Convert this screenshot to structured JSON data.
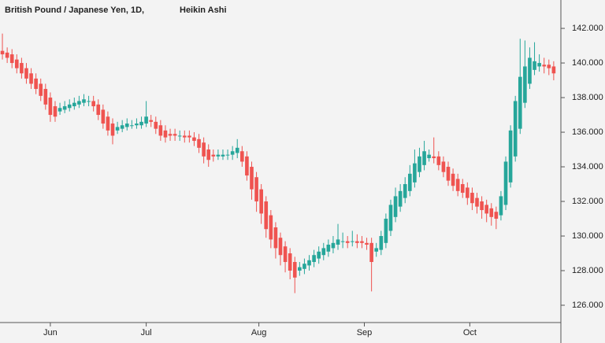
{
  "chart_data": {
    "type": "candlestick",
    "title": "British Pound / Japanese Yen, 1D,",
    "subtitle": "Heikin Ashi",
    "up_color": "#26a69a",
    "down_color": "#ef5350",
    "xlim": [
      -0.5,
      116.5
    ],
    "xticks": [
      {
        "value": 10,
        "label": "Jun"
      },
      {
        "value": 30,
        "label": "Jul"
      },
      {
        "value": 53.5,
        "label": "Aug"
      },
      {
        "value": 75.5,
        "label": "Sep"
      },
      {
        "value": 97.5,
        "label": "Oct"
      }
    ],
    "ylim": [
      125,
      143.64
    ],
    "yticks": [
      {
        "value": 126,
        "label": "126.000"
      },
      {
        "value": 128,
        "label": "128.000"
      },
      {
        "value": 130,
        "label": "130.000"
      },
      {
        "value": 132,
        "label": "132.000"
      },
      {
        "value": 134,
        "label": "134.000"
      },
      {
        "value": 136,
        "label": "136.000"
      },
      {
        "value": 138,
        "label": "138.000"
      },
      {
        "value": 140,
        "label": "140.000"
      },
      {
        "value": 142,
        "label": "142.000"
      }
    ],
    "open": [
      140.7,
      140.6,
      140.5,
      140.2,
      140.0,
      139.7,
      139.4,
      139.1,
      138.8,
      138.5,
      138.0,
      137.5,
      137.2,
      137.3,
      137.4,
      137.5,
      137.6,
      137.7,
      137.8,
      137.8,
      137.6,
      137.3,
      136.9,
      136.5,
      136.1,
      136.2,
      136.3,
      136.4,
      136.4,
      136.4,
      136.5,
      136.7,
      136.6,
      136.4,
      136.1,
      135.9,
      135.9,
      135.8,
      135.8,
      135.8,
      135.7,
      135.6,
      135.4,
      135.0,
      134.7,
      134.6,
      134.6,
      134.7,
      134.7,
      134.8,
      134.9,
      134.6,
      134.0,
      133.4,
      132.7,
      132.0,
      131.2,
      130.5,
      129.9,
      129.4,
      129.0,
      128.5,
      128.0,
      128.1,
      128.3,
      128.5,
      128.7,
      128.9,
      129.1,
      129.3,
      129.5,
      129.7,
      129.7,
      129.7,
      129.7,
      129.7,
      129.6,
      129.6,
      129.1,
      129.2,
      129.6,
      130.3,
      131.1,
      131.7,
      132.2,
      132.6,
      133.1,
      133.7,
      134.1,
      134.5,
      134.6,
      134.6,
      134.3,
      134.0,
      133.6,
      133.3,
      133.0,
      132.8,
      132.5,
      132.2,
      132.0,
      131.8,
      131.6,
      131.4,
      131.2,
      131.8,
      133.1,
      134.6,
      136.2,
      137.7,
      138.8,
      139.6,
      139.8,
      139.9,
      139.9,
      139.8
    ],
    "close": [
      140.5,
      140.3,
      140.0,
      139.7,
      139.4,
      139.1,
      138.8,
      138.5,
      138.1,
      137.6,
      137.0,
      136.9,
      137.4,
      137.5,
      137.6,
      137.7,
      137.8,
      137.9,
      137.8,
      137.5,
      137.0,
      136.5,
      136.1,
      135.8,
      136.3,
      136.4,
      136.5,
      136.4,
      136.5,
      136.6,
      136.9,
      136.6,
      136.2,
      135.8,
      135.7,
      135.8,
      135.8,
      135.8,
      135.7,
      135.7,
      135.5,
      135.1,
      134.6,
      134.4,
      134.6,
      134.7,
      134.7,
      134.7,
      134.9,
      135.1,
      134.3,
      133.5,
      132.7,
      132.0,
      131.3,
      130.4,
      129.8,
      129.3,
      128.9,
      128.5,
      128.0,
      127.6,
      128.2,
      128.4,
      128.6,
      128.9,
      129.1,
      129.3,
      129.5,
      129.6,
      129.8,
      129.7,
      129.6,
      129.7,
      129.6,
      129.6,
      129.5,
      128.5,
      129.3,
      130.0,
      131.0,
      131.8,
      132.3,
      132.6,
      133.0,
      133.6,
      134.2,
      134.6,
      134.9,
      134.7,
      134.5,
      134.1,
      133.7,
      133.2,
      132.9,
      132.6,
      132.5,
      132.2,
      131.9,
      131.7,
      131.5,
      131.3,
      131.1,
      131.0,
      132.3,
      134.3,
      136.1,
      137.8,
      139.2,
      139.8,
      140.3,
      140.1,
      140.0,
      139.8,
      139.7,
      139.4
    ],
    "high": [
      141.7,
      140.9,
      140.8,
      140.5,
      140.3,
      140.0,
      139.7,
      139.4,
      139.1,
      138.8,
      138.3,
      137.8,
      137.7,
      137.8,
      137.9,
      138.0,
      138.1,
      138.2,
      138.1,
      138.1,
      137.9,
      137.6,
      137.2,
      136.8,
      136.6,
      136.7,
      136.8,
      136.7,
      136.8,
      136.9,
      137.8,
      137.0,
      136.9,
      136.7,
      136.4,
      136.2,
      136.2,
      136.1,
      136.1,
      136.1,
      136.0,
      135.9,
      135.7,
      135.3,
      135.0,
      135.0,
      135.0,
      135.0,
      135.2,
      135.6,
      135.2,
      134.9,
      134.3,
      133.7,
      133.0,
      132.3,
      131.5,
      130.8,
      130.2,
      129.7,
      129.3,
      128.8,
      128.5,
      128.7,
      128.9,
      129.2,
      129.4,
      129.6,
      129.8,
      130.0,
      130.7,
      130.2,
      130.0,
      130.3,
      130.1,
      130.0,
      129.9,
      129.9,
      129.6,
      130.3,
      131.3,
      132.1,
      132.8,
      133.0,
      133.4,
      134.1,
      135.0,
      135.1,
      135.5,
      135.0,
      135.7,
      134.9,
      134.6,
      134.3,
      133.9,
      133.6,
      133.3,
      133.1,
      132.8,
      132.5,
      132.3,
      132.1,
      131.9,
      131.7,
      132.6,
      134.6,
      136.4,
      138.1,
      141.4,
      141.3,
      140.9,
      141.2,
      140.5,
      140.3,
      140.2,
      140.1
    ],
    "low": [
      140.2,
      140.0,
      139.7,
      139.4,
      139.1,
      138.8,
      138.5,
      138.2,
      137.8,
      137.3,
      136.6,
      136.6,
      137.0,
      137.1,
      137.2,
      137.3,
      137.4,
      137.5,
      137.5,
      137.2,
      136.7,
      136.2,
      135.8,
      135.3,
      135.9,
      136.0,
      136.1,
      136.2,
      136.2,
      136.2,
      136.3,
      136.3,
      135.9,
      135.5,
      135.4,
      135.5,
      135.5,
      135.5,
      135.4,
      135.4,
      135.2,
      134.8,
      134.2,
      134.0,
      134.3,
      134.4,
      134.4,
      134.4,
      134.4,
      134.5,
      134.0,
      133.2,
      132.1,
      131.4,
      130.7,
      129.9,
      129.3,
      128.7,
      128.3,
      127.9,
      127.5,
      126.7,
      127.7,
      127.8,
      128.0,
      128.2,
      128.4,
      128.6,
      128.8,
      129.0,
      129.2,
      129.3,
      129.3,
      129.4,
      129.3,
      129.3,
      129.2,
      126.8,
      128.8,
      128.9,
      129.3,
      130.0,
      130.8,
      131.4,
      131.9,
      132.3,
      132.8,
      133.4,
      133.8,
      134.3,
      134.2,
      133.8,
      133.4,
      132.9,
      132.6,
      132.3,
      132.2,
      131.8,
      131.5,
      131.3,
      131.0,
      130.8,
      130.6,
      130.4,
      130.9,
      131.5,
      132.8,
      134.3,
      135.9,
      137.4,
      138.5,
      139.3,
      139.5,
      139.4,
      139.3,
      139.0
    ]
  }
}
